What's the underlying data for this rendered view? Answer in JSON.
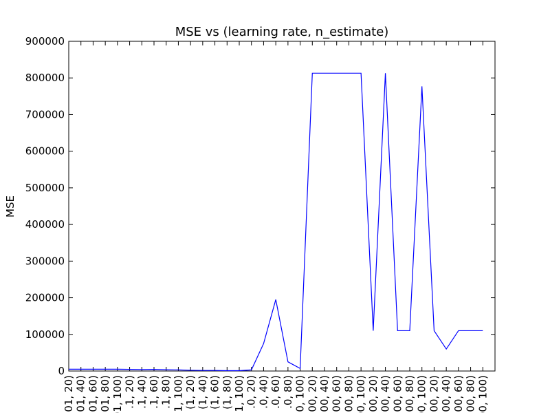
{
  "chart_data": {
    "type": "line",
    "title": "MSE vs (learning rate, n_estimate)",
    "ylabel": "MSE",
    "categories": [
      "01, 20)",
      "01, 40)",
      "01, 60)",
      "01, 80)",
      "01, 100)",
      ".1, 20)",
      ".1, 40)",
      ".1, 60)",
      ".1, 80)",
      "1, 100)",
      "(1, 20)",
      "(1, 40)",
      "(1, 60)",
      "(1, 80)",
      "1, 100)",
      ".0, 20)",
      ".0, 40)",
      ".0, 60)",
      ".0, 80)",
      ".0, 100)",
      "00, 20)",
      "00, 40)",
      "00, 60)",
      "00, 80)",
      "00, 100)",
      "00, 20)",
      "00, 40)",
      "00, 60)",
      "00, 80)",
      "00, 100)",
      "00, 20)",
      "00, 40)",
      "00, 60)",
      "00, 80)",
      "00, 100)"
    ],
    "series": [
      {
        "name": "MSE",
        "color": "#0000ff",
        "values": [
          5000,
          5000,
          5000,
          5000,
          5000,
          4500,
          4000,
          4500,
          3500,
          3000,
          2000,
          1500,
          1500,
          1000,
          1000,
          3000,
          75000,
          195000,
          25000,
          7000,
          813000,
          813000,
          813000,
          813000,
          813000,
          110000,
          813000,
          110000,
          110000,
          777000,
          110000,
          60000,
          110000,
          110000,
          110000
        ]
      }
    ],
    "ylim": [
      0,
      900000
    ],
    "yticks": [
      0,
      100000,
      200000,
      300000,
      400000,
      500000,
      600000,
      700000,
      800000,
      900000
    ]
  }
}
